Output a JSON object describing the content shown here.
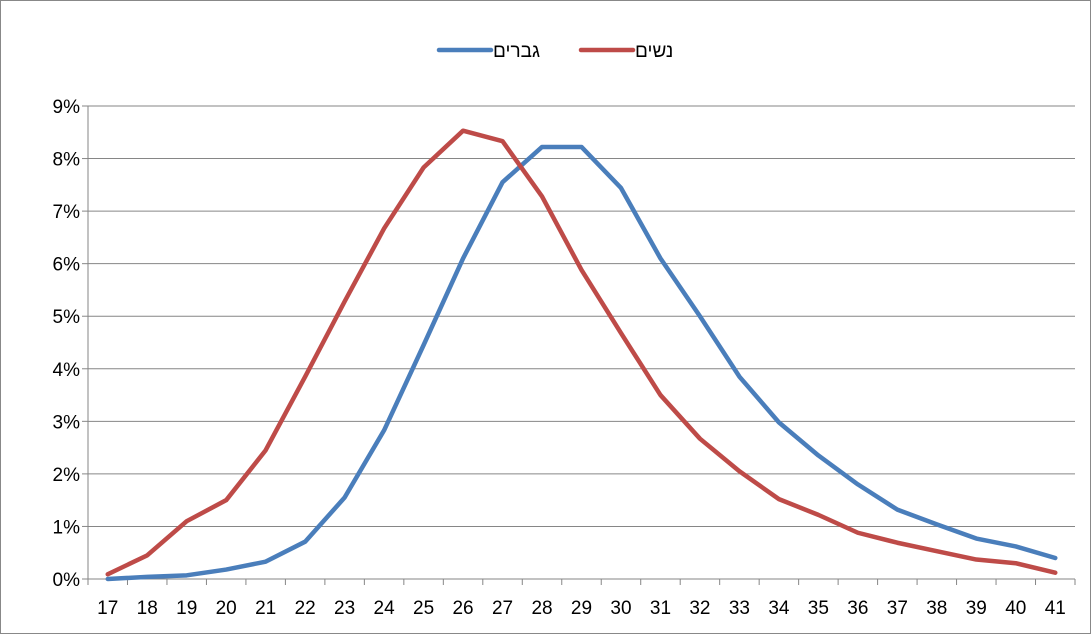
{
  "chart_data": {
    "type": "line",
    "x": [
      "17",
      "18",
      "19",
      "20",
      "21",
      "22",
      "23",
      "24",
      "25",
      "26",
      "27",
      "28",
      "29",
      "30",
      "31",
      "32",
      "33",
      "34",
      "35",
      "36",
      "37",
      "38",
      "39",
      "40",
      "41"
    ],
    "series": [
      {
        "name": "גברים",
        "color": "#4A7EBB",
        "values": [
          0.0,
          0.04,
          0.07,
          0.18,
          0.33,
          0.71,
          1.55,
          2.83,
          4.45,
          6.1,
          7.55,
          8.22,
          8.22,
          7.44,
          6.1,
          5.0,
          3.85,
          2.98,
          2.35,
          1.8,
          1.32,
          1.04,
          0.77,
          0.62,
          0.4
        ]
      },
      {
        "name": "נשים",
        "color": "#BE4B48",
        "values": [
          0.09,
          0.45,
          1.1,
          1.5,
          2.45,
          3.85,
          5.28,
          6.67,
          7.83,
          8.53,
          8.33,
          7.28,
          5.88,
          4.68,
          3.5,
          2.67,
          2.05,
          1.52,
          1.22,
          0.88,
          0.69,
          0.53,
          0.37,
          0.3,
          0.12
        ]
      }
    ],
    "y_ticks": [
      "0%",
      "1%",
      "2%",
      "3%",
      "4%",
      "5%",
      "6%",
      "7%",
      "8%",
      "9%"
    ],
    "ylim": [
      0,
      9
    ],
    "y_unit": "%",
    "grid": true,
    "legend_position": "top-center"
  }
}
